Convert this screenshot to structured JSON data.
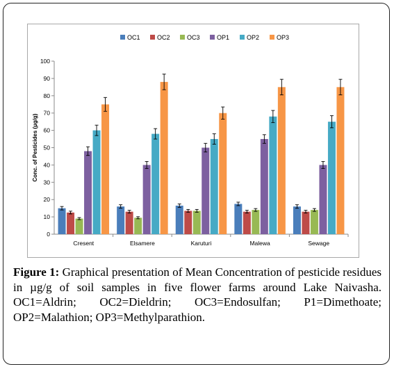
{
  "chart_data": {
    "type": "bar",
    "categories": [
      "Cresent",
      "Elsamere",
      "Karuturi",
      "Malewa",
      "Sewage"
    ],
    "series": [
      {
        "name": "OC1",
        "color": "#4a7ebb",
        "values": [
          15,
          16,
          16.5,
          17.5,
          16
        ],
        "errors": [
          1,
          1,
          1,
          1,
          1
        ]
      },
      {
        "name": "OC2",
        "color": "#be4b48",
        "values": [
          12.5,
          13,
          13.5,
          13,
          13
        ],
        "errors": [
          0.8,
          0.8,
          0.8,
          0.8,
          0.8
        ]
      },
      {
        "name": "OC3",
        "color": "#98b954",
        "values": [
          9,
          9.5,
          13.5,
          14,
          14
        ],
        "errors": [
          0.6,
          0.6,
          0.8,
          0.8,
          0.8
        ]
      },
      {
        "name": "OP1",
        "color": "#7d60a0",
        "values": [
          48,
          40,
          50,
          55,
          40
        ],
        "errors": [
          2.5,
          2,
          2.5,
          2.5,
          2
        ]
      },
      {
        "name": "OP2",
        "color": "#46aac5",
        "values": [
          60,
          58,
          55,
          68,
          65
        ],
        "errors": [
          3,
          3,
          3,
          3.5,
          3.5
        ]
      },
      {
        "name": "OP3",
        "color": "#f79646",
        "values": [
          75,
          88,
          70,
          85,
          85
        ],
        "errors": [
          4,
          4.5,
          3.5,
          4.5,
          4.5
        ]
      }
    ],
    "ylabel": "Conc. of Pesticides (µg/g)",
    "xlabel": "",
    "ylim": [
      0,
      100
    ],
    "yticks": [
      0,
      10,
      20,
      30,
      40,
      50,
      60,
      70,
      80,
      90,
      100
    ],
    "grid": false,
    "legend_position": "top",
    "error_bars": true
  },
  "caption": {
    "label": "Figure 1:",
    "text": "Graphical presentation of Mean Concentration of pesticide residues in µg/g of soil samples in five flower farms around Lake Naivasha. OC1=Aldrin; OC2=Dieldrin; OC3=Endosulfan; P1=Dimethoate; OP2=Malathion; OP3=Methylparathion."
  }
}
